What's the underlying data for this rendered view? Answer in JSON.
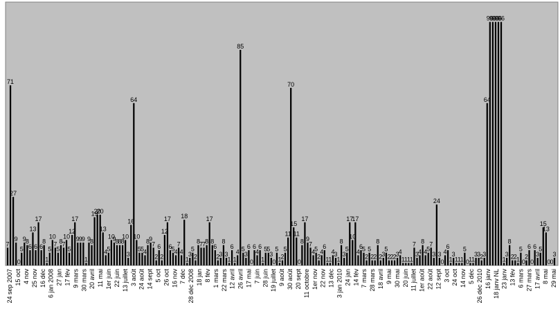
{
  "chart_data": {
    "type": "bar",
    "title": "",
    "xlabel": "",
    "ylabel": "",
    "ylim": [
      0,
      100
    ],
    "grid": false,
    "legend": "none",
    "colors": {
      "plot_bg": "#c0c0c0",
      "bar": "#000000",
      "border": "#808080"
    },
    "x_tick_labels": [
      "24 sep 2007",
      "15 oct",
      "4 nov",
      "25 nov",
      "16 déc",
      "6 jan 2008",
      "27 jan",
      "17 fév",
      "9 mars",
      "30 mars",
      "20 avril",
      "11 mai",
      "1er juin",
      "22 juin",
      "13 juillet",
      "3 août",
      "24 août",
      "14 sept",
      "5 oct",
      "26 oct",
      "16 nov",
      "7 déc",
      "28 déc 2008",
      "18 jan",
      "8 fév",
      "1 mars",
      "22 mars",
      "12 avril",
      "26 avril",
      "17 mai",
      "7 juin",
      "28 juin",
      "19 juillet",
      "9 août",
      "30 août",
      "20 sept",
      "11 octobre",
      "1er nov",
      "22 nov",
      "13 déc",
      "3 jan 2010",
      "24 jan",
      "14 fév",
      "7 mars",
      "28 mars",
      "18 avril",
      "9 mai",
      "30 mai",
      "20 juin",
      "11 juillet",
      "1er août",
      "22 août",
      "12 sept",
      "3 oct",
      "24 oct",
      "14 nov",
      "5 déc",
      "26 déc 2010",
      "16 janv",
      "18 janv NL",
      "23 janv",
      "13 fév",
      "6 mars",
      "27 mars",
      "17 avril",
      "8 mai",
      "29 mai"
    ],
    "values": [
      7,
      71,
      27,
      9,
      0,
      5,
      9,
      8,
      6,
      13,
      6,
      17,
      6,
      8,
      1,
      5,
      10,
      7,
      5,
      8,
      7,
      10,
      5,
      12,
      17,
      9,
      9,
      9,
      1,
      9,
      8,
      19,
      20,
      20,
      13,
      4,
      5,
      10,
      9,
      8,
      8,
      8,
      10,
      3,
      16,
      64,
      10,
      5,
      5,
      4,
      8,
      9,
      7,
      2,
      6,
      2,
      12,
      17,
      6,
      5,
      4,
      7,
      4,
      18,
      1,
      3,
      5,
      2,
      8,
      7,
      7,
      8,
      17,
      8,
      6,
      2,
      3,
      8,
      3,
      1,
      6,
      1,
      4,
      85,
      5,
      3,
      6,
      0,
      6,
      4,
      6,
      1,
      5,
      5,
      3,
      0,
      5,
      1,
      2,
      5,
      11,
      70,
      15,
      11,
      0,
      8,
      17,
      9,
      7,
      4,
      5,
      2,
      4,
      6,
      1,
      1,
      4,
      3,
      1,
      8,
      3,
      5,
      17,
      10,
      17,
      4,
      6,
      5,
      2,
      5,
      2,
      2,
      8,
      2,
      3,
      5,
      2,
      2,
      2,
      3,
      4,
      1,
      1,
      1,
      1,
      7,
      3,
      4,
      8,
      4,
      5,
      7,
      3,
      24,
      3,
      0,
      4,
      6,
      1,
      3,
      1,
      1,
      1,
      5,
      0,
      1,
      1,
      3,
      3,
      2,
      3,
      64,
      96,
      96,
      96,
      96,
      96,
      1,
      3,
      8,
      2,
      2,
      1,
      5,
      0,
      2,
      6,
      0,
      6,
      3,
      5,
      15,
      13,
      0,
      0,
      3
    ],
    "value_labels": [
      "7",
      "71",
      "27",
      "9",
      "0",
      "5",
      "9",
      "8",
      "6",
      "13",
      "6",
      "17",
      "6",
      "8",
      "1",
      "5",
      "10",
      "7",
      "5",
      "8",
      "7",
      "10",
      "5",
      "12",
      "17",
      "9",
      "9",
      "9",
      "1",
      "9",
      "8",
      "19",
      "20",
      "20",
      "13",
      "4",
      "5",
      "10",
      "9",
      "8",
      "8",
      "8",
      "10",
      "3",
      "16",
      "64",
      "10",
      "5",
      "5",
      "4",
      "8",
      "9",
      "7",
      "2",
      "6",
      "2",
      "12",
      "17",
      "6",
      "5",
      "4",
      "7",
      "4",
      "18",
      "1",
      "3",
      "5",
      "2",
      "8",
      "7",
      "7",
      "8",
      "17",
      "8",
      "6",
      "2",
      "3",
      "8",
      "3",
      "1",
      "6",
      "1",
      "4",
      "85",
      "5",
      "3",
      "6",
      "0",
      "6",
      "4",
      "6",
      "1",
      "5",
      "5",
      "3",
      "0",
      "5",
      "1",
      "2",
      "5",
      "11",
      "70",
      "15",
      "11",
      "0",
      "8",
      "17",
      "9",
      "7",
      "4",
      "5",
      "2",
      "4",
      "6",
      "1",
      "1",
      "4",
      "3",
      "1",
      "8",
      "3",
      "5",
      "17",
      "10",
      "17",
      "4",
      "6",
      "5",
      "2",
      "5",
      "2",
      "2",
      "8",
      "2",
      "3",
      "5",
      "2",
      "2",
      "2",
      "3",
      "4",
      "1",
      "1",
      "1",
      "1",
      "7",
      "3",
      "4",
      "8",
      "4",
      "5",
      "7",
      "3",
      "24",
      "3",
      "0",
      "4",
      "6",
      "1",
      "3",
      "1",
      "1",
      "1",
      "5",
      "0",
      "1",
      "1",
      "3",
      "3",
      "2",
      "3",
      "64",
      "96",
      "96",
      "96",
      "96",
      "96",
      "1",
      "3",
      "8",
      "2",
      "2",
      "1",
      "5",
      "0",
      "2",
      "6",
      "0",
      "6",
      "3",
      "5",
      "15",
      "13",
      "0",
      "0",
      "3"
    ]
  }
}
